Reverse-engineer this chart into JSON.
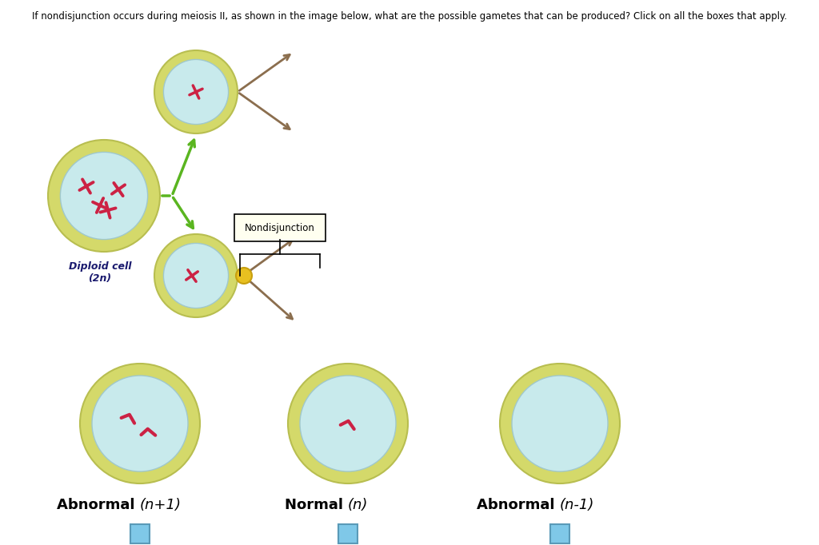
{
  "title_text": "If nondisjunction occurs during meiosis II, as shown in the image below, what are the possible gametes that can be produced? Click on all the boxes that apply.",
  "bg_color": "#ffffff",
  "cell_outer_color": "#d4d96a",
  "cell_outer_edge": "#b8be50",
  "cell_inner_color": "#c8eaec",
  "cell_inner_edge": "#a0c8cc",
  "chrom_color": "#cc2244",
  "arrow_brown": "#8b6e4e",
  "arrow_green": "#5ab520",
  "ndj_box_bg": "#fffff0",
  "ndj_dot_color": "#e8c020",
  "ndj_dot_edge": "#c8a010",
  "label_color": "#000000",
  "checkbox_color": "#7fc8e8",
  "checkbox_edge": "#5a9ab8",
  "diploid_label": "Diploid cell\n(2n)",
  "bottom_labels": [
    "Abnormal (n+1)",
    "Normal (n)",
    "Abnormal (n-1)"
  ]
}
